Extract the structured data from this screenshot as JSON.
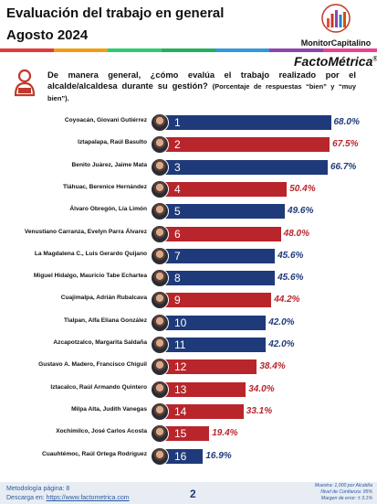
{
  "header": {
    "title_line1": "Evaluación del trabajo en general",
    "title_line2": "Agosto 2024",
    "brand": "MonitorCapitalino",
    "sub_brand": "FactoMétrica",
    "stripe_colors": [
      "#e23c3c",
      "#f39c12",
      "#2ecc71",
      "#27ae60",
      "#3498db",
      "#8e44ad",
      "#e84393"
    ]
  },
  "question": {
    "text": "De manera general, ¿cómo evalúa el trabajo realizado por el alcalde/alcaldesa durante su gestión?",
    "note": "(Porcentaje de respuestas “bien” y “muy bien”)."
  },
  "chart_data": {
    "type": "bar",
    "orientation": "horizontal",
    "unit": "%",
    "xlim": [
      0,
      70
    ],
    "colors": {
      "blue": "#1f3a7a",
      "red": "#b8262c"
    },
    "categories": [
      "Coyoacán, Giovani Gutiérrez",
      "Iztapalapa, Raúl Basulto",
      "Benito Juárez, Jaime Mata",
      "Tláhuac, Berenice Hernández",
      "Álvaro Obregón, Lía Limón",
      "Venustiano Carranza, Evelyn Parra Álvarez",
      "La Magdalena C., Luis Gerardo Quijano",
      "Miguel Hidalgo, Mauricio Tabe Echartea",
      "Cuajimalpa, Adrián Rubalcava",
      "Tlalpan, Alfa Eliana González",
      "Azcapotzalco, Margarita Saldaña",
      "Gustavo A. Madero, Francisco Chíguil",
      "Iztacalco, Raúl Armando Quintero",
      "Milpa Alta, Judith Vanegas",
      "Xochimilco, José Carlos Acosta",
      "Cuauhtémoc, Raúl Ortega Rodríguez"
    ],
    "ranks": [
      "1",
      "2",
      "3",
      "4",
      "5",
      "6",
      "7",
      "8",
      "9",
      "10",
      "11",
      "12",
      "13",
      "14",
      "15",
      "16"
    ],
    "values": [
      68.0,
      67.5,
      66.7,
      50.4,
      49.6,
      48.0,
      45.6,
      45.6,
      44.2,
      42.0,
      42.0,
      38.4,
      34.0,
      33.1,
      19.4,
      16.9
    ],
    "value_labels": [
      "68.0%",
      "67.5%",
      "66.7%",
      "50.4%",
      "49.6%",
      "48.0%",
      "45.6%",
      "45.6%",
      "44.2%",
      "42.0%",
      "42.0%",
      "38.4%",
      "34.0%",
      "33.1%",
      "19.4%",
      "16.9%"
    ],
    "bar_colors": [
      "blue",
      "red",
      "blue",
      "red",
      "blue",
      "red",
      "blue",
      "blue",
      "red",
      "blue",
      "blue",
      "red",
      "red",
      "red",
      "red",
      "blue"
    ]
  },
  "footer": {
    "methodology": "Metodología página: 8",
    "download_prefix": "Descarga en: ",
    "download_link": "https://www.factometrica.com",
    "page_number": "2",
    "sample": "Muestra: 1,000 por Alcaldía",
    "confidence": "Nivel de Confianza: 95%",
    "margin": "Margen de error: ± 3.1%"
  }
}
